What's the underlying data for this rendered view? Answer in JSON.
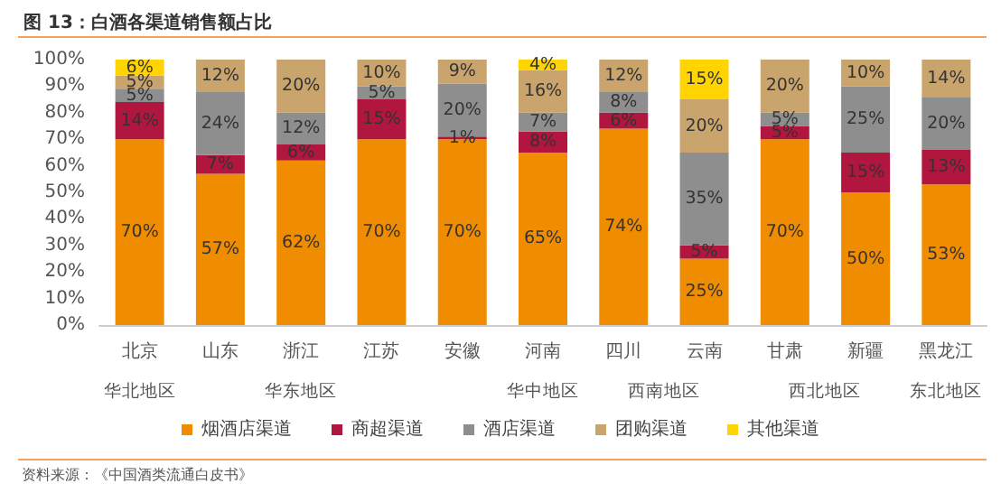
{
  "chart_data": {
    "type": "bar",
    "stacked": true,
    "title": "图 13：白酒各渠道销售额占比",
    "categories": [
      "北京",
      "山东",
      "浙江",
      "江苏",
      "安徽",
      "河南",
      "四川",
      "云南",
      "甘肃",
      "新疆",
      "黑龙江"
    ],
    "series": [
      {
        "name": "烟酒店渠道",
        "color": "#f08c00",
        "values": [
          70,
          57,
          62,
          70,
          70,
          65,
          74,
          25,
          70,
          50,
          53
        ],
        "value_labels": [
          "70%",
          "57%",
          "62%",
          "70%",
          "70%",
          "65%",
          "74%",
          "25%",
          "70%",
          "50%",
          "53%"
        ]
      },
      {
        "name": "商超渠道",
        "color": "#b0163e",
        "values": [
          14,
          7,
          6,
          15,
          1,
          8,
          6,
          5,
          5,
          15,
          13
        ],
        "value_labels": [
          "14%",
          "7%",
          "6%",
          "15%",
          "1%",
          "8%",
          "6%",
          "5%",
          "5%",
          "15%",
          "13%"
        ]
      },
      {
        "name": "酒店渠道",
        "color": "#8e8e8e",
        "values": [
          5,
          24,
          12,
          5,
          20,
          7,
          8,
          35,
          5,
          25,
          20
        ],
        "value_labels": [
          "5%",
          "24%",
          "12%",
          "5%",
          "20%",
          "7%",
          "8%",
          "35%",
          "5%",
          "25%",
          "20%"
        ]
      },
      {
        "name": "团购渠道",
        "color": "#c9a46c",
        "values": [
          5,
          12,
          20,
          10,
          9,
          16,
          12,
          20,
          20,
          10,
          14
        ],
        "value_labels": [
          "5%",
          "12%",
          "20%",
          "10%",
          "9%",
          "16%",
          "12%",
          "20%",
          "20%",
          "10%",
          "14%"
        ]
      },
      {
        "name": "其他渠道",
        "color": "#ffd400",
        "values": [
          6,
          null,
          null,
          null,
          null,
          4,
          null,
          15,
          null,
          null,
          null
        ],
        "value_labels": [
          "6%",
          null,
          null,
          null,
          null,
          "4%",
          null,
          "15%",
          null,
          null,
          null
        ]
      }
    ],
    "ylim": [
      0,
      100
    ],
    "yticks": [
      {
        "value": 0,
        "label": "0%"
      },
      {
        "value": 10,
        "label": "10%"
      },
      {
        "value": 20,
        "label": "20%"
      },
      {
        "value": 30,
        "label": "30%"
      },
      {
        "value": 40,
        "label": "40%"
      },
      {
        "value": 50,
        "label": "50%"
      },
      {
        "value": 60,
        "label": "60%"
      },
      {
        "value": 70,
        "label": "70%"
      },
      {
        "value": 80,
        "label": "80%"
      },
      {
        "value": 90,
        "label": "90%"
      },
      {
        "value": 100,
        "label": "100%"
      }
    ],
    "grid": false,
    "legend": "bottom",
    "annotations": [
      "华北地区",
      "华东地区",
      "华中地区",
      "西南地区",
      "西北地区",
      "东北地区",
      "资料来源：《中国酒类流通白皮书》"
    ]
  }
}
